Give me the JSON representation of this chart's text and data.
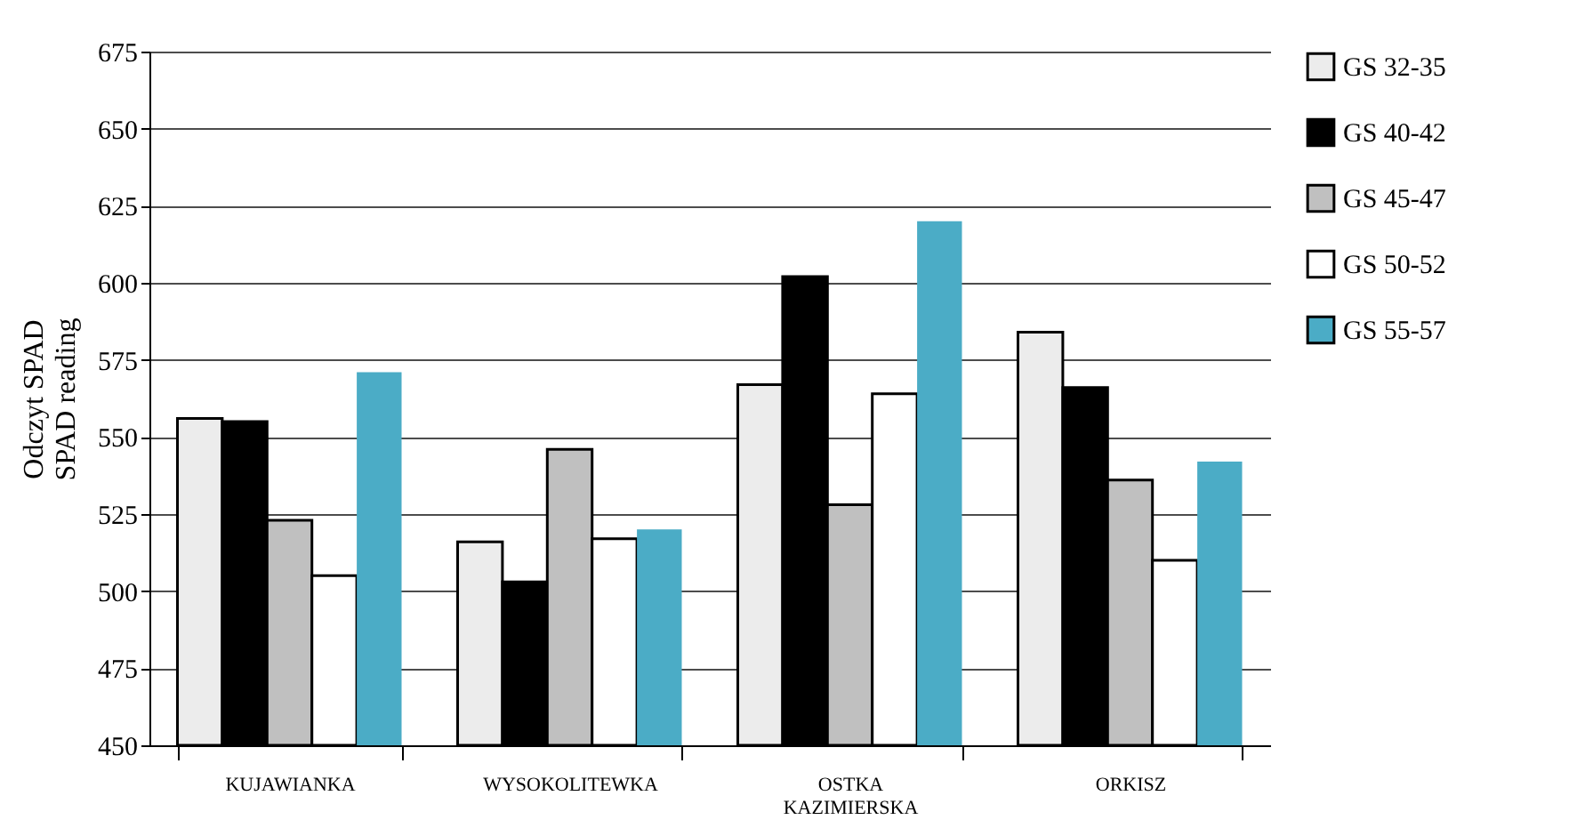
{
  "chart_data": {
    "type": "bar",
    "ylabel": "Odczyt SPAD\nSPAD reading",
    "categories": [
      "KUJAWIANKA",
      "WYSOKOLITEWKA",
      "OSTKA KAZIMIERSKA",
      "ORKISZ"
    ],
    "series": [
      {
        "name": "GS 32-35",
        "color": "#ececec",
        "values": [
          556,
          516,
          567,
          584
        ]
      },
      {
        "name": "GS 40-42",
        "color": "#000000",
        "values": [
          555,
          503,
          602,
          566
        ]
      },
      {
        "name": "GS 45-47",
        "color": "#c0c0c0",
        "values": [
          523,
          546,
          528,
          536
        ]
      },
      {
        "name": "GS 50-52",
        "color": "#ffffff",
        "values": [
          505,
          517,
          564,
          510
        ]
      },
      {
        "name": "GS 55-57",
        "color": "#4bacc6",
        "values": [
          571,
          520,
          620,
          542
        ]
      }
    ],
    "ylim": [
      450,
      675
    ],
    "yticks": [
      450,
      475,
      500,
      525,
      550,
      575,
      600,
      625,
      650,
      675
    ],
    "grid": "y",
    "legend": "right"
  }
}
